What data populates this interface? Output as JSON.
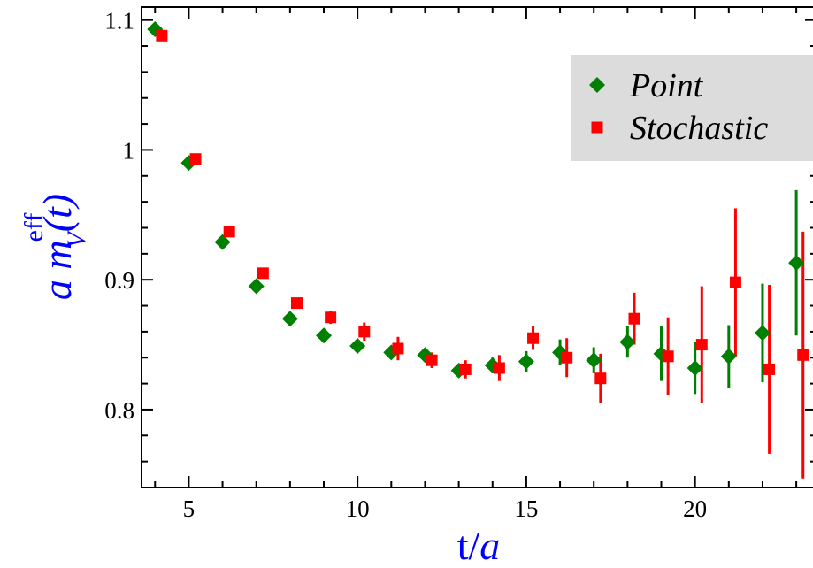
{
  "chart_data": {
    "type": "scatter",
    "xlabel": {
      "main": "t/",
      "italic": "a"
    },
    "ylabel": {
      "prefix": "a m",
      "superscript": "eff",
      "subscript": "V",
      "suffix": "(t)"
    },
    "xlim": [
      3.6,
      23.6
    ],
    "ylim": [
      0.74,
      1.11
    ],
    "xticks": [
      5,
      10,
      15,
      20
    ],
    "xtick_labels": [
      "5",
      "10",
      "15",
      "20"
    ],
    "yticks": [
      0.8,
      0.9,
      1.0,
      1.1
    ],
    "ytick_labels": [
      "0.8",
      "0.9",
      "1",
      "1.1"
    ],
    "legend": {
      "position": "top-right",
      "background": "#dcdcdc"
    },
    "series": [
      {
        "name": "Point",
        "marker": "diamond",
        "color": "#008000",
        "points": [
          {
            "x": 4,
            "y": 1.093,
            "err": 0.002
          },
          {
            "x": 5,
            "y": 0.99,
            "err": 0.002
          },
          {
            "x": 6,
            "y": 0.929,
            "err": 0.002
          },
          {
            "x": 7,
            "y": 0.895,
            "err": 0.002
          },
          {
            "x": 8,
            "y": 0.87,
            "err": 0.002
          },
          {
            "x": 9,
            "y": 0.857,
            "err": 0.003
          },
          {
            "x": 10,
            "y": 0.849,
            "err": 0.004
          },
          {
            "x": 11,
            "y": 0.844,
            "err": 0.005
          },
          {
            "x": 12,
            "y": 0.842,
            "err": 0.004
          },
          {
            "x": 13,
            "y": 0.83,
            "err": 0.005
          },
          {
            "x": 14,
            "y": 0.834,
            "err": 0.006
          },
          {
            "x": 15,
            "y": 0.837,
            "err": 0.008
          },
          {
            "x": 16,
            "y": 0.844,
            "err": 0.01
          },
          {
            "x": 17,
            "y": 0.838,
            "err": 0.01
          },
          {
            "x": 18,
            "y": 0.852,
            "err": 0.012
          },
          {
            "x": 19,
            "y": 0.843,
            "err": 0.021
          },
          {
            "x": 20,
            "y": 0.832,
            "err": 0.02
          },
          {
            "x": 21,
            "y": 0.841,
            "err": 0.024
          },
          {
            "x": 22,
            "y": 0.859,
            "err": 0.038
          },
          {
            "x": 23,
            "y": 0.913,
            "err": 0.056
          }
        ]
      },
      {
        "name": "Stochastic",
        "marker": "square",
        "color": "#ff0000",
        "points": [
          {
            "x": 4.2,
            "y": 1.088,
            "err": 0.002
          },
          {
            "x": 5.2,
            "y": 0.993,
            "err": 0.002
          },
          {
            "x": 6.2,
            "y": 0.937,
            "err": 0.002
          },
          {
            "x": 7.2,
            "y": 0.905,
            "err": 0.003
          },
          {
            "x": 8.2,
            "y": 0.882,
            "err": 0.003
          },
          {
            "x": 9.2,
            "y": 0.871,
            "err": 0.005
          },
          {
            "x": 10.2,
            "y": 0.86,
            "err": 0.007
          },
          {
            "x": 11.2,
            "y": 0.847,
            "err": 0.009
          },
          {
            "x": 12.2,
            "y": 0.838,
            "err": 0.006
          },
          {
            "x": 13.2,
            "y": 0.831,
            "err": 0.007
          },
          {
            "x": 14.2,
            "y": 0.832,
            "err": 0.01
          },
          {
            "x": 15.2,
            "y": 0.855,
            "err": 0.009
          },
          {
            "x": 16.2,
            "y": 0.84,
            "err": 0.015
          },
          {
            "x": 17.2,
            "y": 0.824,
            "err": 0.019
          },
          {
            "x": 18.2,
            "y": 0.87,
            "err": 0.02
          },
          {
            "x": 19.2,
            "y": 0.841,
            "err": 0.03
          },
          {
            "x": 20.2,
            "y": 0.85,
            "err": 0.045
          },
          {
            "x": 21.2,
            "y": 0.898,
            "err": 0.057
          },
          {
            "x": 22.2,
            "y": 0.831,
            "err": 0.065
          },
          {
            "x": 23.2,
            "y": 0.842,
            "err": 0.095
          }
        ]
      }
    ]
  }
}
